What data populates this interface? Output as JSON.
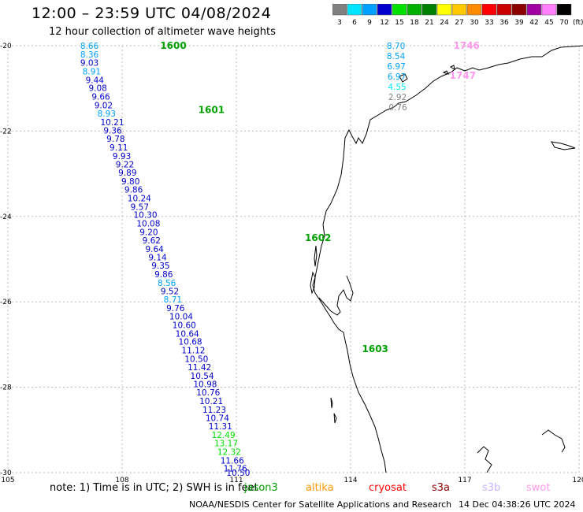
{
  "header": {
    "title": "12:00 – 23:59 UTC 04/08/2024",
    "subtitle": "12 hour collection of altimeter wave heights"
  },
  "legend": {
    "unit": "(ft)",
    "bins": [
      {
        "label": "3",
        "color": "#808080"
      },
      {
        "label": "6",
        "color": "#00e5ff"
      },
      {
        "label": "9",
        "color": "#00a0ff"
      },
      {
        "label": "12",
        "color": "#0000cd"
      },
      {
        "label": "15",
        "color": "#00e000"
      },
      {
        "label": "18",
        "color": "#00b000"
      },
      {
        "label": "21",
        "color": "#008000"
      },
      {
        "label": "24",
        "color": "#ffff00"
      },
      {
        "label": "27",
        "color": "#ffc800"
      },
      {
        "label": "30",
        "color": "#ff8c00"
      },
      {
        "label": "33",
        "color": "#ff0000"
      },
      {
        "label": "36",
        "color": "#c80000"
      },
      {
        "label": "39",
        "color": "#8b0000"
      },
      {
        "label": "42",
        "color": "#a000a0"
      },
      {
        "label": "45",
        "color": "#ff80ff"
      },
      {
        "label": "70",
        "color": "#000000"
      }
    ]
  },
  "note": "note:  1) Time is in UTC; 2) SWH is in feet",
  "satellites": [
    {
      "name": "jason3",
      "color": "#00a000"
    },
    {
      "name": "altika",
      "color": "#ff9900"
    },
    {
      "name": "cryosat",
      "color": "#ff0000"
    },
    {
      "name": "s3a",
      "color": "#8b0000"
    },
    {
      "name": "s3b",
      "color": "#c8b4ff"
    },
    {
      "name": "swot",
      "color": "#ff99ee"
    }
  ],
  "footer": {
    "credit": "NOAA/NESDIS Center for Satellite Applications and Research",
    "timestamp": "14 Dec 04:38:26 UTC 2024"
  },
  "chart_data": {
    "type": "scatter",
    "title": "12:00 – 23:59 UTC 04/08/2024",
    "subtitle": "12 hour collection of altimeter wave heights",
    "xlim": [
      105,
      120
    ],
    "ylim": [
      -30,
      -20
    ],
    "xticks": [
      "105",
      "108",
      "111",
      "114",
      "117",
      "120"
    ],
    "yticks": [
      "-20",
      "-22",
      "-24",
      "-26",
      "-28",
      "-30"
    ],
    "grid": true,
    "series": [
      {
        "name": "jason3",
        "color": "#00a000",
        "time_labels": [
          {
            "label": "1600",
            "lon": 109.0,
            "lat": -20.0
          },
          {
            "label": "1601",
            "lon": 110.0,
            "lat": -21.5
          },
          {
            "label": "1602",
            "lon": 112.8,
            "lat": -24.5
          },
          {
            "label": "1603",
            "lon": 114.3,
            "lat": -27.1
          }
        ],
        "points": [
          {
            "lon": 106.9,
            "lat": -20.0,
            "swh": "8.66"
          },
          {
            "lon": 106.9,
            "lat": -20.2,
            "swh": "8.36"
          },
          {
            "lon": 106.9,
            "lat": -20.4,
            "swh": "9.03"
          },
          {
            "lon": 106.96,
            "lat": -20.6,
            "swh": "8.91"
          },
          {
            "lon": 107.04,
            "lat": -20.8,
            "swh": "9.44"
          },
          {
            "lon": 107.12,
            "lat": -20.99,
            "swh": "9.08"
          },
          {
            "lon": 107.2,
            "lat": -21.19,
            "swh": "9.66"
          },
          {
            "lon": 107.27,
            "lat": -21.39,
            "swh": "9.02"
          },
          {
            "lon": 107.35,
            "lat": -21.59,
            "swh": "8.93"
          },
          {
            "lon": 107.43,
            "lat": -21.79,
            "swh": "10.21"
          },
          {
            "lon": 107.51,
            "lat": -21.98,
            "swh": "9.36"
          },
          {
            "lon": 107.59,
            "lat": -22.18,
            "swh": "9.78"
          },
          {
            "lon": 107.67,
            "lat": -22.38,
            "swh": "9.11"
          },
          {
            "lon": 107.75,
            "lat": -22.58,
            "swh": "9.93"
          },
          {
            "lon": 107.83,
            "lat": -22.78,
            "swh": "9.22"
          },
          {
            "lon": 107.9,
            "lat": -22.97,
            "swh": "9.89"
          },
          {
            "lon": 107.98,
            "lat": -23.17,
            "swh": "9.80"
          },
          {
            "lon": 108.06,
            "lat": -23.37,
            "swh": "9.86"
          },
          {
            "lon": 108.14,
            "lat": -23.57,
            "swh": "10.24"
          },
          {
            "lon": 108.22,
            "lat": -23.77,
            "swh": "9.57"
          },
          {
            "lon": 108.3,
            "lat": -23.96,
            "swh": "10.30"
          },
          {
            "lon": 108.38,
            "lat": -24.16,
            "swh": "10.08"
          },
          {
            "lon": 108.46,
            "lat": -24.36,
            "swh": "9.20"
          },
          {
            "lon": 108.53,
            "lat": -24.56,
            "swh": "9.62"
          },
          {
            "lon": 108.61,
            "lat": -24.76,
            "swh": "9.64"
          },
          {
            "lon": 108.69,
            "lat": -24.95,
            "swh": "9.14"
          },
          {
            "lon": 108.77,
            "lat": -25.15,
            "swh": "9.35"
          },
          {
            "lon": 108.85,
            "lat": -25.35,
            "swh": "9.86"
          },
          {
            "lon": 108.93,
            "lat": -25.55,
            "swh": "8.56"
          },
          {
            "lon": 109.01,
            "lat": -25.75,
            "swh": "9.52"
          },
          {
            "lon": 109.09,
            "lat": -25.94,
            "swh": "8.71"
          },
          {
            "lon": 109.16,
            "lat": -26.14,
            "swh": "9.76"
          },
          {
            "lon": 109.24,
            "lat": -26.34,
            "swh": "10.04"
          },
          {
            "lon": 109.32,
            "lat": -26.54,
            "swh": "10.60"
          },
          {
            "lon": 109.4,
            "lat": -26.74,
            "swh": "10.64"
          },
          {
            "lon": 109.48,
            "lat": -26.93,
            "swh": "10.68"
          },
          {
            "lon": 109.56,
            "lat": -27.13,
            "swh": "11.12"
          },
          {
            "lon": 109.64,
            "lat": -27.33,
            "swh": "10.50"
          },
          {
            "lon": 109.72,
            "lat": -27.53,
            "swh": "11.42"
          },
          {
            "lon": 109.79,
            "lat": -27.73,
            "swh": "10.54"
          },
          {
            "lon": 109.87,
            "lat": -27.92,
            "swh": "10.98"
          },
          {
            "lon": 109.95,
            "lat": -28.12,
            "swh": "10.76"
          },
          {
            "lon": 110.03,
            "lat": -28.32,
            "swh": "10.21"
          },
          {
            "lon": 110.11,
            "lat": -28.52,
            "swh": "11.23"
          },
          {
            "lon": 110.19,
            "lat": -28.72,
            "swh": "10.74"
          },
          {
            "lon": 110.27,
            "lat": -28.91,
            "swh": "11.31"
          },
          {
            "lon": 110.35,
            "lat": -29.11,
            "swh": "12.49"
          },
          {
            "lon": 110.42,
            "lat": -29.31,
            "swh": "13.17"
          },
          {
            "lon": 110.5,
            "lat": -29.51,
            "swh": "12.32"
          },
          {
            "lon": 110.58,
            "lat": -29.71,
            "swh": "11.66"
          },
          {
            "lon": 110.66,
            "lat": -29.9,
            "swh": "11.76"
          },
          {
            "lon": 110.74,
            "lat": -30.0,
            "swh": "10.50"
          }
        ]
      },
      {
        "name": "swot",
        "color": "#ff99ee",
        "time_labels": [
          {
            "label": "1746",
            "lon": 116.7,
            "lat": -20.0
          },
          {
            "label": "1747",
            "lon": 116.6,
            "lat": -20.7
          }
        ],
        "points": [
          {
            "lon": 114.95,
            "lat": -20.0,
            "swh": "8.70"
          },
          {
            "lon": 114.95,
            "lat": -20.24,
            "swh": "8.54"
          },
          {
            "lon": 114.96,
            "lat": -20.48,
            "swh": "6.97"
          },
          {
            "lon": 114.97,
            "lat": -20.72,
            "swh": "6.97"
          },
          {
            "lon": 114.98,
            "lat": -20.96,
            "swh": "4.55"
          },
          {
            "lon": 114.99,
            "lat": -21.2,
            "swh": "2.92"
          },
          {
            "lon": 115.0,
            "lat": -21.44,
            "swh": "0.76"
          }
        ]
      }
    ]
  }
}
